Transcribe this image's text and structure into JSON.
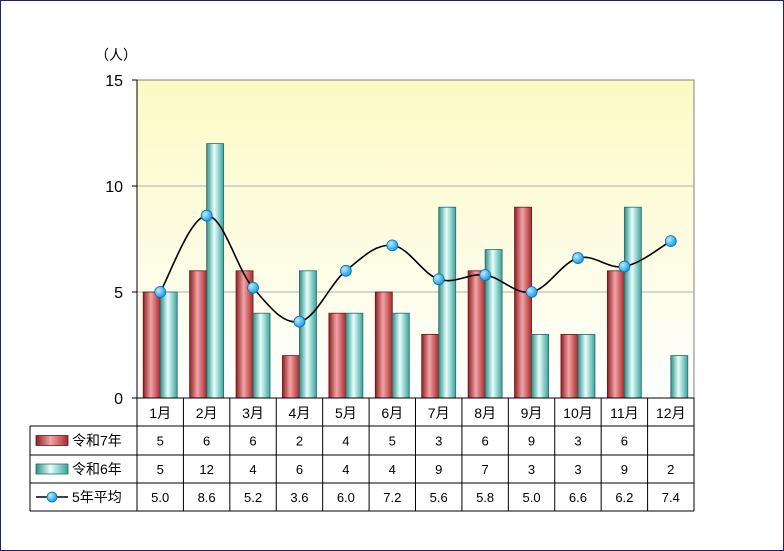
{
  "chart_data": {
    "type": "bar",
    "unit_label": "（人）",
    "categories": [
      "1月",
      "2月",
      "3月",
      "4月",
      "5月",
      "6月",
      "7月",
      "8月",
      "9月",
      "10月",
      "11月",
      "12月"
    ],
    "ylim": [
      0,
      15
    ],
    "y_ticks": [
      "0",
      "5",
      "10",
      "15"
    ],
    "grid": true,
    "series": [
      {
        "name": "令和7年",
        "kind": "bar",
        "color": "#c0393b",
        "values": [
          5,
          6,
          6,
          2,
          4,
          5,
          3,
          6,
          9,
          3,
          6,
          null
        ],
        "display": [
          "5",
          "6",
          "6",
          "2",
          "4",
          "5",
          "3",
          "6",
          "9",
          "3",
          "6",
          ""
        ]
      },
      {
        "name": "令和6年",
        "kind": "bar",
        "color": "#4fb8b0",
        "values": [
          5,
          12,
          4,
          6,
          4,
          4,
          9,
          7,
          3,
          3,
          9,
          2
        ],
        "display": [
          "5",
          "12",
          "4",
          "6",
          "4",
          "4",
          "9",
          "7",
          "3",
          "3",
          "9",
          "2"
        ]
      },
      {
        "name": "5年平均",
        "kind": "line",
        "color": "#1aa3e8",
        "values": [
          5.0,
          8.6,
          5.2,
          3.6,
          6.0,
          7.2,
          5.6,
          5.8,
          5.0,
          6.6,
          6.2,
          7.4
        ],
        "display": [
          "5.0",
          "8.6",
          "5.2",
          "3.6",
          "6.0",
          "7.2",
          "5.6",
          "5.8",
          "5.0",
          "6.6",
          "6.2",
          "7.4"
        ]
      }
    ]
  }
}
